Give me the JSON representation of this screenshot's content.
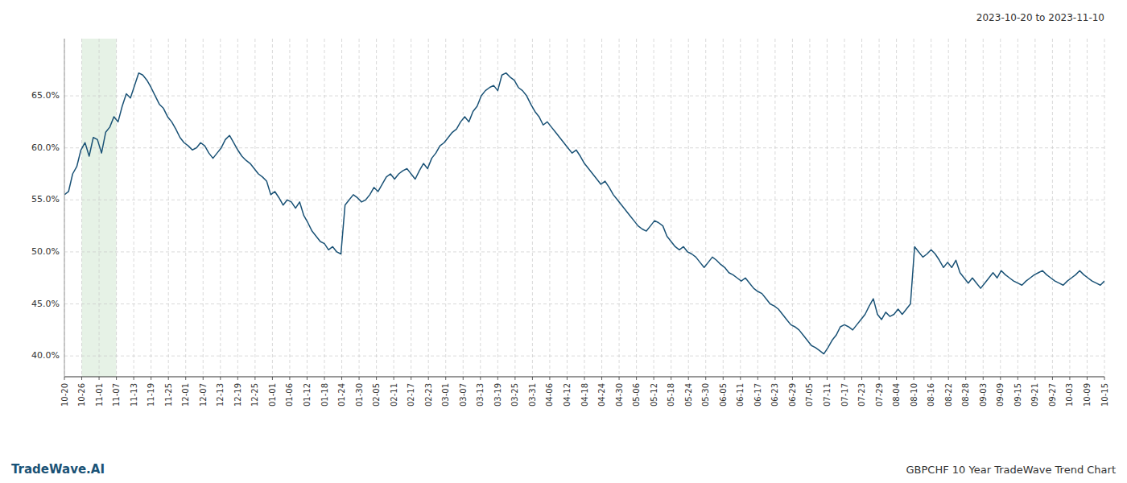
{
  "chart_data": {
    "type": "line",
    "annotations": [
      "2023-10-20 to 2023-11-10",
      "TradeWave.AI",
      "GBPCHF 10 Year TradeWave Trend Chart"
    ],
    "color": "#1a5276",
    "grid": true,
    "shaded_range": {
      "from": "10-26",
      "to": "11-07",
      "color": "#d6ead6"
    },
    "xlim": [
      0,
      252
    ],
    "xticks": [
      {
        "value": 0,
        "label": "10-20"
      },
      {
        "value": 4.2,
        "label": "10-26"
      },
      {
        "value": 8.4,
        "label": "11-01"
      },
      {
        "value": 12.6,
        "label": "11-07"
      },
      {
        "value": 16.8,
        "label": "11-13"
      },
      {
        "value": 21,
        "label": "11-19"
      },
      {
        "value": 25.2,
        "label": "11-25"
      },
      {
        "value": 29.4,
        "label": "12-01"
      },
      {
        "value": 33.6,
        "label": "12-07"
      },
      {
        "value": 37.8,
        "label": "12-13"
      },
      {
        "value": 42,
        "label": "12-19"
      },
      {
        "value": 46.2,
        "label": "12-25"
      },
      {
        "value": 50.4,
        "label": "01-01"
      },
      {
        "value": 54.6,
        "label": "01-06"
      },
      {
        "value": 58.8,
        "label": "01-12"
      },
      {
        "value": 63,
        "label": "01-18"
      },
      {
        "value": 67.2,
        "label": "01-24"
      },
      {
        "value": 71.4,
        "label": "01-30"
      },
      {
        "value": 75.6,
        "label": "02-05"
      },
      {
        "value": 79.8,
        "label": "02-11"
      },
      {
        "value": 84,
        "label": "02-17"
      },
      {
        "value": 88.2,
        "label": "02-23"
      },
      {
        "value": 92.4,
        "label": "03-01"
      },
      {
        "value": 96.6,
        "label": "03-07"
      },
      {
        "value": 100.8,
        "label": "03-13"
      },
      {
        "value": 105,
        "label": "03-19"
      },
      {
        "value": 109.2,
        "label": "03-25"
      },
      {
        "value": 113.4,
        "label": "03-31"
      },
      {
        "value": 117.6,
        "label": "04-06"
      },
      {
        "value": 121.8,
        "label": "04-12"
      },
      {
        "value": 126,
        "label": "04-18"
      },
      {
        "value": 130.2,
        "label": "04-24"
      },
      {
        "value": 134.4,
        "label": "04-30"
      },
      {
        "value": 138.6,
        "label": "05-06"
      },
      {
        "value": 142.8,
        "label": "05-12"
      },
      {
        "value": 147,
        "label": "05-18"
      },
      {
        "value": 151.2,
        "label": "05-24"
      },
      {
        "value": 155.4,
        "label": "05-30"
      },
      {
        "value": 159.6,
        "label": "06-05"
      },
      {
        "value": 163.8,
        "label": "06-11"
      },
      {
        "value": 168,
        "label": "06-17"
      },
      {
        "value": 172.2,
        "label": "06-23"
      },
      {
        "value": 176.4,
        "label": "06-29"
      },
      {
        "value": 180.6,
        "label": "07-05"
      },
      {
        "value": 184.8,
        "label": "07-11"
      },
      {
        "value": 189,
        "label": "07-17"
      },
      {
        "value": 193.2,
        "label": "07-23"
      },
      {
        "value": 197.4,
        "label": "07-29"
      },
      {
        "value": 201.6,
        "label": "08-04"
      },
      {
        "value": 205.8,
        "label": "08-10"
      },
      {
        "value": 210,
        "label": "08-16"
      },
      {
        "value": 214.2,
        "label": "08-22"
      },
      {
        "value": 218.4,
        "label": "08-28"
      },
      {
        "value": 222.6,
        "label": "09-03"
      },
      {
        "value": 226.8,
        "label": "09-09"
      },
      {
        "value": 231,
        "label": "09-15"
      },
      {
        "value": 235.2,
        "label": "09-21"
      },
      {
        "value": 239.4,
        "label": "09-27"
      },
      {
        "value": 243.6,
        "label": "10-03"
      },
      {
        "value": 247.8,
        "label": "10-09"
      },
      {
        "value": 252,
        "label": "10-15"
      }
    ],
    "ylim": [
      38.0,
      70.5
    ],
    "yticks": [
      {
        "value": 40.0,
        "label": "40.0%"
      },
      {
        "value": 45.0,
        "label": "45.0%"
      },
      {
        "value": 50.0,
        "label": "50.0%"
      },
      {
        "value": 55.0,
        "label": "55.0%"
      },
      {
        "value": 60.0,
        "label": "60.0%"
      },
      {
        "value": 65.0,
        "label": "65.0%"
      }
    ],
    "values": [
      55.5,
      55.8,
      57.5,
      58.2,
      59.8,
      60.5,
      59.2,
      61.0,
      60.8,
      59.5,
      61.5,
      62.0,
      63.0,
      62.5,
      64.0,
      65.2,
      64.8,
      66.0,
      67.2,
      67.0,
      66.5,
      65.8,
      65.0,
      64.2,
      63.8,
      63.0,
      62.5,
      61.8,
      61.0,
      60.5,
      60.2,
      59.8,
      60.0,
      60.5,
      60.2,
      59.5,
      59.0,
      59.5,
      60.0,
      60.8,
      61.2,
      60.5,
      59.8,
      59.2,
      58.8,
      58.5,
      58.0,
      57.5,
      57.2,
      56.8,
      55.5,
      55.8,
      55.2,
      54.5,
      55.0,
      54.8,
      54.2,
      54.8,
      53.5,
      52.8,
      52.0,
      51.5,
      51.0,
      50.8,
      50.2,
      50.5,
      50.0,
      49.8,
      54.5,
      55.0,
      55.5,
      55.2,
      54.8,
      55.0,
      55.5,
      56.2,
      55.8,
      56.5,
      57.2,
      57.5,
      57.0,
      57.5,
      57.8,
      58.0,
      57.5,
      57.0,
      57.8,
      58.5,
      58.0,
      59.0,
      59.5,
      60.2,
      60.5,
      61.0,
      61.5,
      61.8,
      62.5,
      63.0,
      62.5,
      63.5,
      64.0,
      65.0,
      65.5,
      65.8,
      66.0,
      65.5,
      67.0,
      67.2,
      66.8,
      66.5,
      65.8,
      65.5,
      65.0,
      64.2,
      63.5,
      63.0,
      62.2,
      62.5,
      62.0,
      61.5,
      61.0,
      60.5,
      60.0,
      59.5,
      59.8,
      59.2,
      58.5,
      58.0,
      57.5,
      57.0,
      56.5,
      56.8,
      56.2,
      55.5,
      55.0,
      54.5,
      54.0,
      53.5,
      53.0,
      52.5,
      52.2,
      52.0,
      52.5,
      53.0,
      52.8,
      52.5,
      51.5,
      51.0,
      50.5,
      50.2,
      50.5,
      50.0,
      49.8,
      49.5,
      49.0,
      48.5,
      49.0,
      49.5,
      49.2,
      48.8,
      48.5,
      48.0,
      47.8,
      47.5,
      47.2,
      47.5,
      47.0,
      46.5,
      46.2,
      46.0,
      45.5,
      45.0,
      44.8,
      44.5,
      44.0,
      43.5,
      43.0,
      42.8,
      42.5,
      42.0,
      41.5,
      41.0,
      40.8,
      40.5,
      40.2,
      40.8,
      41.5,
      42.0,
      42.8,
      43.0,
      42.8,
      42.5,
      43.0,
      43.5,
      44.0,
      44.8,
      45.5,
      44.0,
      43.5,
      44.2,
      43.8,
      44.0,
      44.5,
      44.0,
      44.5,
      45.0,
      50.5,
      50.0,
      49.5,
      49.8,
      50.2,
      49.8,
      49.2,
      48.5,
      49.0,
      48.5,
      49.2,
      48.0,
      47.5,
      47.0,
      47.5,
      47.0,
      46.5,
      47.0,
      47.5,
      48.0,
      47.5,
      48.2,
      47.8,
      47.5,
      47.2,
      47.0,
      46.8,
      47.2,
      47.5,
      47.8,
      48.0,
      48.2,
      47.8,
      47.5,
      47.2,
      47.0,
      46.8,
      47.2,
      47.5,
      47.8,
      48.2,
      47.8,
      47.5,
      47.2,
      47.0,
      46.8,
      47.2
    ]
  }
}
